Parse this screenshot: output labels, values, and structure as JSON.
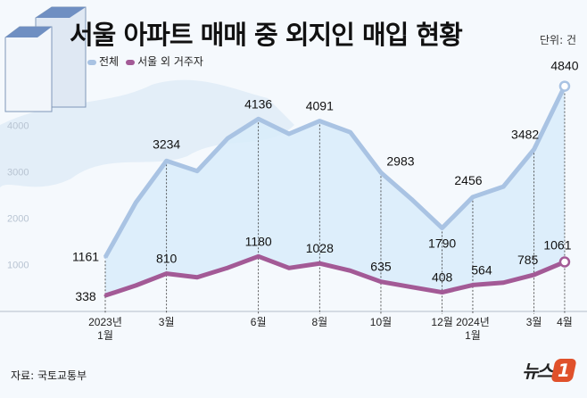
{
  "title": "서울 아파트 매매 중 외지인 매입 현황",
  "unit": "단위: 건",
  "source": "자료: 국토교통부",
  "logo": {
    "text": "뉴스",
    "mark": "1"
  },
  "colors": {
    "total": "#a9c3e3",
    "outside": "#a35a96",
    "fill": "#d8ecfa",
    "background": "#f5f9fd"
  },
  "chart_data": {
    "type": "line",
    "title": "서울 아파트 매매 중 외지인 매입 현황",
    "unit": "단위: 건",
    "x": [
      "2023-01",
      "2023-02",
      "2023-03",
      "2023-04",
      "2023-05",
      "2023-06",
      "2023-07",
      "2023-08",
      "2023-09",
      "2023-10",
      "2023-11",
      "2023-12",
      "2024-01",
      "2024-02",
      "2024-03",
      "2024-04"
    ],
    "tick_labels": [
      {
        "index": 0,
        "line1": "2023년",
        "line2": "1월"
      },
      {
        "index": 2,
        "line1": "3월",
        "line2": ""
      },
      {
        "index": 5,
        "line1": "6월",
        "line2": ""
      },
      {
        "index": 7,
        "line1": "8월",
        "line2": ""
      },
      {
        "index": 9,
        "line1": "10월",
        "line2": ""
      },
      {
        "index": 11,
        "line1": "12월",
        "line2": ""
      },
      {
        "index": 12,
        "line1": "2024년",
        "line2": "1월"
      },
      {
        "index": 14,
        "line1": "3월",
        "line2": ""
      },
      {
        "index": 15,
        "line1": "4월",
        "line2": ""
      }
    ],
    "yticks": [
      1000,
      2000,
      3000,
      4000
    ],
    "ylim": [
      0,
      5000
    ],
    "series": [
      {
        "name": "전체",
        "values": [
          1161,
          2340,
          3234,
          3015,
          3720,
          4136,
          3815,
          4091,
          3850,
          2983,
          2410,
          1790,
          2456,
          2680,
          3482,
          4840
        ],
        "labeled": [
          0,
          2,
          5,
          7,
          9,
          11,
          12,
          14,
          15
        ]
      },
      {
        "name": "서울 외 거주자",
        "values": [
          338,
          555,
          810,
          730,
          935,
          1180,
          930,
          1028,
          873,
          635,
          520,
          408,
          564,
          615,
          785,
          1061
        ],
        "labeled": [
          0,
          2,
          5,
          7,
          9,
          11,
          12,
          14,
          15
        ]
      }
    ],
    "legend": "top-left"
  }
}
